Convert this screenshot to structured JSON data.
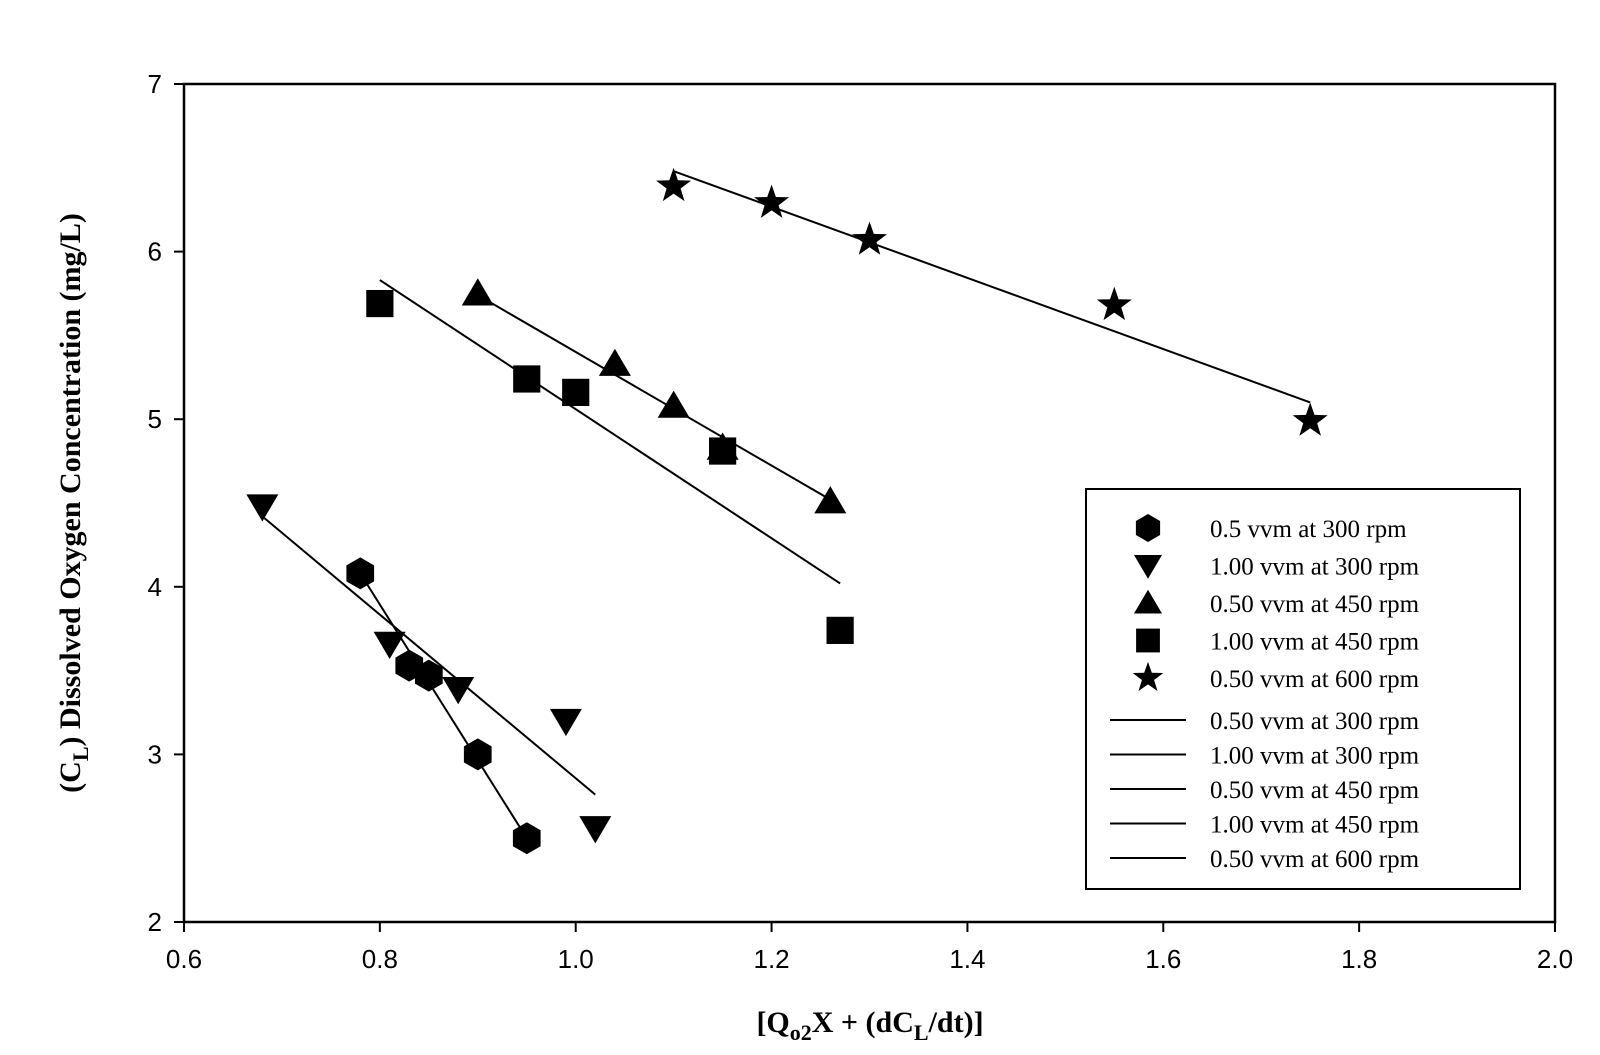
{
  "chart_data": {
    "type": "scatter",
    "ylabel": {
      "prefix": "(C",
      "sub": "L",
      "suffix": ") Dissolved Oxygen Concentration (mg/L)"
    },
    "xlabel": {
      "p1": "[Q",
      "sub1": "o2",
      "p2": "X + (dC",
      "sub2": "L",
      "p3": "/dt)]"
    },
    "xlim": [
      0.6,
      2.0
    ],
    "ylim": [
      2,
      7
    ],
    "x_ticks": [
      0.6,
      0.8,
      1.0,
      1.2,
      1.4,
      1.6,
      1.8,
      2.0
    ],
    "x_tick_labels": [
      "0.6",
      "0.8",
      "1.0",
      "1.2",
      "1.4",
      "1.6",
      "1.8",
      "2.0"
    ],
    "y_ticks": [
      2,
      3,
      4,
      5,
      6,
      7
    ],
    "y_tick_labels": [
      "2",
      "3",
      "4",
      "5",
      "6",
      "7"
    ],
    "grid": false,
    "legend_position": "lower-right",
    "series": [
      {
        "name": "0.5 vvm at 300 rpm",
        "marker": "hexagon",
        "points": [
          [
            0.78,
            4.08
          ],
          [
            0.83,
            3.53
          ],
          [
            0.85,
            3.47
          ],
          [
            0.9,
            3.0
          ],
          [
            0.95,
            2.5
          ]
        ]
      },
      {
        "name": "1.00 vvm at 300 rpm",
        "marker": "triangle-down",
        "points": [
          [
            0.68,
            4.48
          ],
          [
            0.81,
            3.66
          ],
          [
            0.88,
            3.39
          ],
          [
            0.99,
            3.2
          ],
          [
            1.02,
            2.56
          ]
        ]
      },
      {
        "name": "0.50 vvm at 450 rpm",
        "marker": "triangle-up",
        "points": [
          [
            0.9,
            5.75
          ],
          [
            1.04,
            5.33
          ],
          [
            1.1,
            5.08
          ],
          [
            1.15,
            4.83
          ],
          [
            1.26,
            4.51
          ]
        ]
      },
      {
        "name": "1.00 vvm at 450 rpm",
        "marker": "square",
        "points": [
          [
            0.8,
            5.69
          ],
          [
            0.95,
            5.24
          ],
          [
            1.0,
            5.16
          ],
          [
            1.15,
            4.81
          ],
          [
            1.27,
            3.74
          ]
        ]
      },
      {
        "name": "0.50 vvm at 600 rpm",
        "marker": "star",
        "points": [
          [
            1.1,
            6.39
          ],
          [
            1.2,
            6.29
          ],
          [
            1.3,
            6.07
          ],
          [
            1.55,
            5.68
          ],
          [
            1.75,
            4.99
          ]
        ]
      }
    ],
    "fit_lines": [
      {
        "name": "0.50 vvm at 300 rpm",
        "from": [
          0.78,
          4.08
        ],
        "to": [
          0.95,
          2.5
        ]
      },
      {
        "name": "1.00 vvm at 300 rpm",
        "from": [
          0.68,
          4.42
        ],
        "to": [
          1.02,
          2.76
        ]
      },
      {
        "name": "0.50 vvm at 450 rpm",
        "from": [
          0.9,
          5.74
        ],
        "to": [
          1.26,
          4.52
        ]
      },
      {
        "name": "1.00 vvm at 450 rpm",
        "from": [
          0.8,
          5.83
        ],
        "to": [
          1.27,
          4.02
        ]
      },
      {
        "name": "0.50 vvm  at 600 rpm",
        "from": [
          1.1,
          6.48
        ],
        "to": [
          1.75,
          5.1
        ]
      }
    ]
  },
  "colors": {
    "marker": "#000000",
    "line": "#000000",
    "background": "#ffffff"
  }
}
